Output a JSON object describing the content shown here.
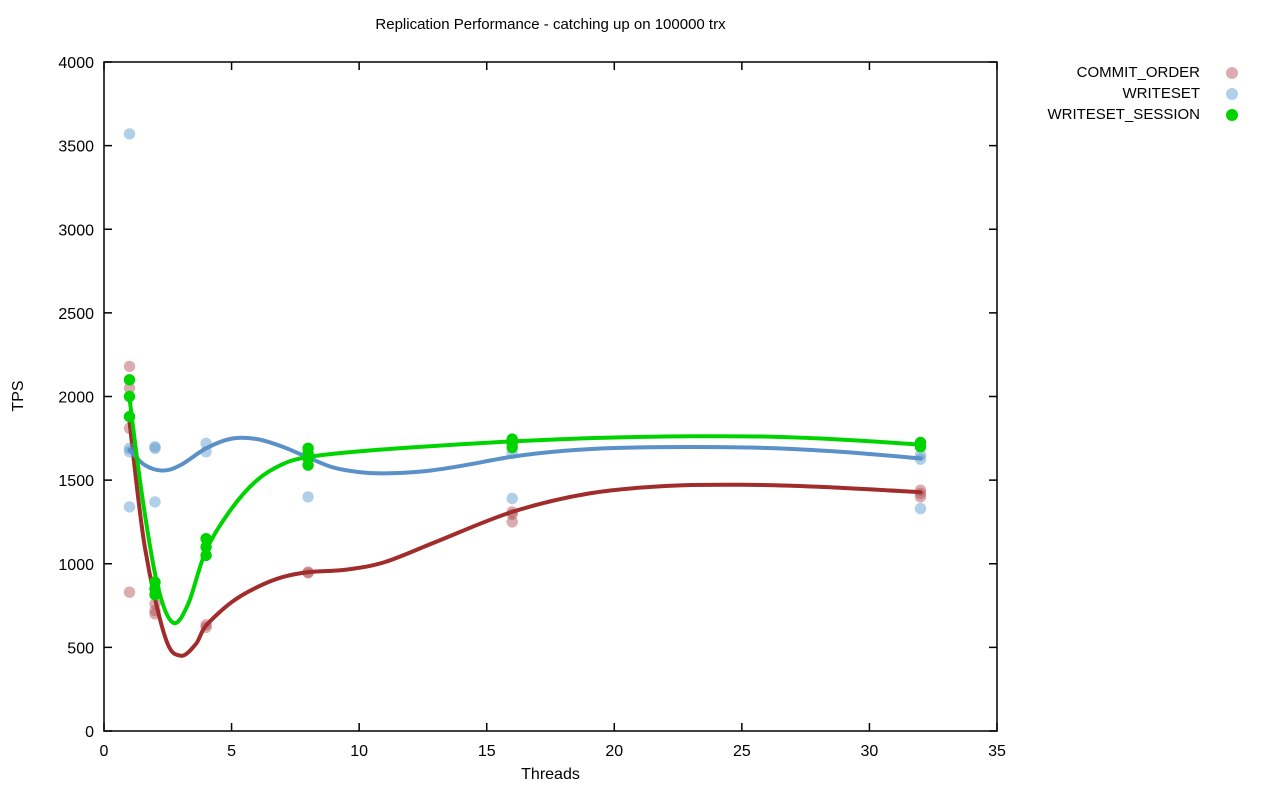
{
  "chart_data": {
    "type": "scatter",
    "title": "Replication Performance - catching up on 100000 trx",
    "xlabel": "Threads",
    "ylabel": "TPS",
    "xlim": [
      0,
      35
    ],
    "ylim": [
      0,
      4000
    ],
    "xticks": [
      0,
      5,
      10,
      15,
      20,
      25,
      30,
      35
    ],
    "yticks": [
      0,
      500,
      1000,
      1500,
      2000,
      2500,
      3000,
      3500,
      4000
    ],
    "grid": false,
    "legend_position": "outside-top-right",
    "series": [
      {
        "name": "COMMIT_ORDER",
        "point_color": "#b04a52",
        "point_opacity": 0.45,
        "line_color": "#a02c2c",
        "points": [
          [
            1,
            2180
          ],
          [
            1,
            2050
          ],
          [
            1,
            1810
          ],
          [
            1,
            830
          ],
          [
            2,
            760
          ],
          [
            2,
            720
          ],
          [
            2,
            700
          ],
          [
            4,
            635
          ],
          [
            4,
            620
          ],
          [
            8,
            950
          ],
          [
            8,
            945
          ],
          [
            16,
            1310
          ],
          [
            16,
            1295
          ],
          [
            16,
            1250
          ],
          [
            32,
            1440
          ],
          [
            32,
            1420
          ],
          [
            32,
            1400
          ]
        ],
        "curve": [
          [
            1,
            1850
          ],
          [
            1.6,
            1100
          ],
          [
            2.4,
            560
          ],
          [
            3,
            450
          ],
          [
            3.6,
            520
          ],
          [
            4,
            630
          ],
          [
            5,
            770
          ],
          [
            6,
            860
          ],
          [
            7,
            920
          ],
          [
            8,
            950
          ],
          [
            9.5,
            965
          ],
          [
            11,
            1010
          ],
          [
            13,
            1130
          ],
          [
            16,
            1310
          ],
          [
            19,
            1420
          ],
          [
            22,
            1465
          ],
          [
            25,
            1472
          ],
          [
            28,
            1460
          ],
          [
            32,
            1428
          ]
        ]
      },
      {
        "name": "WRITESET",
        "point_color": "#4f94cd",
        "point_opacity": 0.45,
        "line_color": "#5b90c8",
        "points": [
          [
            1,
            3570
          ],
          [
            1,
            1690
          ],
          [
            1,
            1670
          ],
          [
            1,
            1340
          ],
          [
            2,
            1700
          ],
          [
            2,
            1690
          ],
          [
            2,
            1370
          ],
          [
            4,
            1720
          ],
          [
            4,
            1670
          ],
          [
            8,
            1690
          ],
          [
            8,
            1400
          ],
          [
            16,
            1660
          ],
          [
            16,
            1390
          ],
          [
            32,
            1650
          ],
          [
            32,
            1625
          ],
          [
            32,
            1330
          ]
        ],
        "curve": [
          [
            1,
            1680
          ],
          [
            1.6,
            1590
          ],
          [
            2.3,
            1557
          ],
          [
            3,
            1590
          ],
          [
            4,
            1690
          ],
          [
            5,
            1748
          ],
          [
            6,
            1745
          ],
          [
            7,
            1700
          ],
          [
            8,
            1635
          ],
          [
            9,
            1575
          ],
          [
            10,
            1548
          ],
          [
            11,
            1540
          ],
          [
            12.5,
            1552
          ],
          [
            14,
            1585
          ],
          [
            16,
            1640
          ],
          [
            18,
            1675
          ],
          [
            20,
            1692
          ],
          [
            23,
            1698
          ],
          [
            26,
            1692
          ],
          [
            29,
            1668
          ],
          [
            32,
            1630
          ]
        ]
      },
      {
        "name": "WRITESET_SESSION",
        "point_color": "#00d400",
        "point_opacity": 1,
        "line_color": "#00d400",
        "points": [
          [
            1,
            2100
          ],
          [
            1,
            2000
          ],
          [
            1,
            1880
          ],
          [
            2,
            890
          ],
          [
            2,
            850
          ],
          [
            2,
            815
          ],
          [
            4,
            1150
          ],
          [
            4,
            1100
          ],
          [
            4,
            1050
          ],
          [
            8,
            1690
          ],
          [
            8,
            1660
          ],
          [
            8,
            1630
          ],
          [
            8,
            1590
          ],
          [
            16,
            1745
          ],
          [
            16,
            1720
          ],
          [
            16,
            1695
          ],
          [
            32,
            1725
          ],
          [
            32,
            1700
          ]
        ],
        "curve": [
          [
            1,
            1990
          ],
          [
            1.5,
            1400
          ],
          [
            2.1,
            870
          ],
          [
            2.7,
            648
          ],
          [
            3.3,
            760
          ],
          [
            4,
            1080
          ],
          [
            5,
            1330
          ],
          [
            6,
            1500
          ],
          [
            7,
            1595
          ],
          [
            8,
            1638
          ],
          [
            10,
            1672
          ],
          [
            12,
            1695
          ],
          [
            14,
            1715
          ],
          [
            16,
            1732
          ],
          [
            18,
            1745
          ],
          [
            20,
            1755
          ],
          [
            23,
            1762
          ],
          [
            26,
            1760
          ],
          [
            29,
            1742
          ],
          [
            32,
            1712
          ]
        ]
      }
    ]
  }
}
